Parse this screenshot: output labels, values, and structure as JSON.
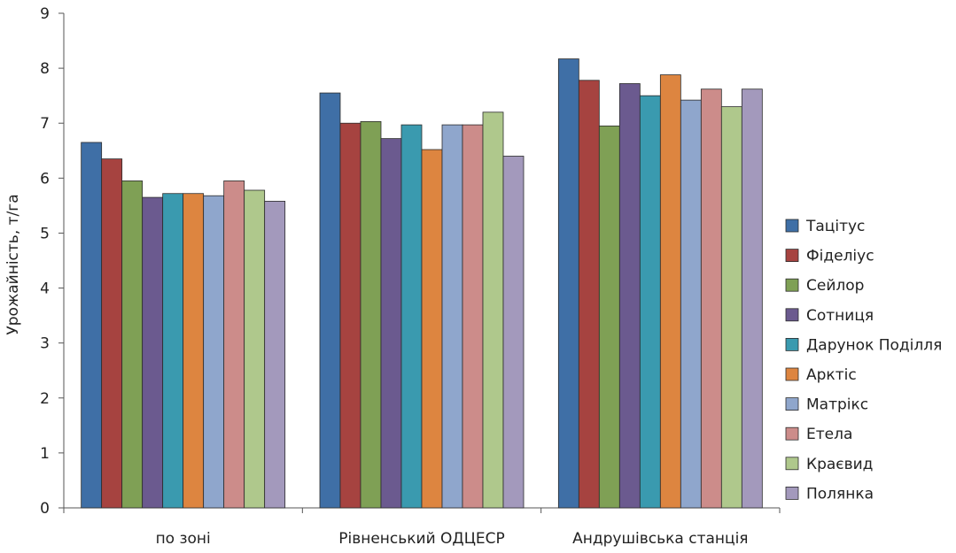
{
  "chart_data": {
    "type": "bar",
    "title": "",
    "xlabel": "",
    "ylabel": "Урожайність, т/га",
    "ylim": [
      0,
      9
    ],
    "yticks": [
      0,
      1,
      2,
      3,
      4,
      5,
      6,
      7,
      8,
      9
    ],
    "grid": false,
    "legend_position": "right",
    "categories": [
      "по зоні",
      "Рівненський ОДЦЕСР",
      "Андрушівська станція"
    ],
    "series": [
      {
        "name": "Тацітус",
        "color": "#3F6FA6",
        "values": [
          6.65,
          7.55,
          8.17
        ]
      },
      {
        "name": "Фіделіус",
        "color": "#A64340",
        "values": [
          6.35,
          7.0,
          7.78
        ]
      },
      {
        "name": "Сейлор",
        "color": "#7FA055",
        "values": [
          5.95,
          7.03,
          6.95
        ]
      },
      {
        "name": "Сотниця",
        "color": "#6B5A8F",
        "values": [
          5.65,
          6.72,
          7.72
        ]
      },
      {
        "name": "Дарунок Поділля",
        "color": "#3A9AAF",
        "values": [
          5.72,
          6.97,
          7.5
        ]
      },
      {
        "name": "Арктіс",
        "color": "#DD8540",
        "values": [
          5.72,
          6.52,
          7.88
        ]
      },
      {
        "name": "Матрікс",
        "color": "#8FA6CC",
        "values": [
          5.68,
          6.97,
          7.42
        ]
      },
      {
        "name": "Етела",
        "color": "#CC8C8A",
        "values": [
          5.95,
          6.97,
          7.62
        ]
      },
      {
        "name": "Краєвид",
        "color": "#AFC88C",
        "values": [
          5.78,
          7.2,
          7.3
        ]
      },
      {
        "name": "Полянка",
        "color": "#A399BC",
        "values": [
          5.58,
          6.4,
          7.62
        ]
      }
    ]
  }
}
